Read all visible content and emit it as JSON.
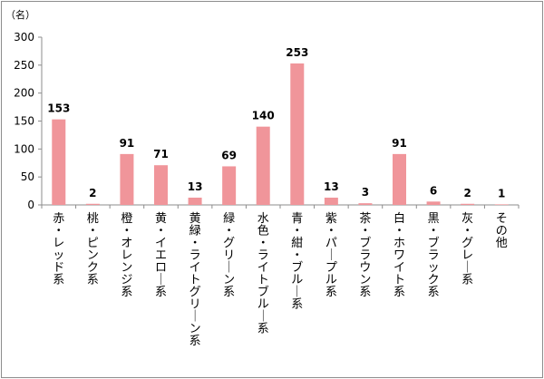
{
  "chart_data": {
    "type": "bar",
    "unit_label": "（名）",
    "categories": [
      "赤・レッド系",
      "桃・ピンク系",
      "橙・オレンジ系",
      "黄・イエロー系",
      "黄緑・ライトグリーン系",
      "緑・グリーン系",
      "水色・ライトブルー系",
      "青・紺・ブルー系",
      "紫・パープル系",
      "茶・ブラウン系",
      "白・ホワイト系",
      "黒・ブラック系",
      "灰・グレー系",
      "その他"
    ],
    "values": [
      153,
      2,
      91,
      71,
      13,
      69,
      140,
      253,
      13,
      3,
      91,
      6,
      2,
      1
    ],
    "ylim": [
      0,
      300
    ],
    "yticks": [
      0,
      50,
      100,
      150,
      200,
      250,
      300
    ],
    "grid": false,
    "data_labels": true,
    "bar_color": "#f0959a"
  }
}
